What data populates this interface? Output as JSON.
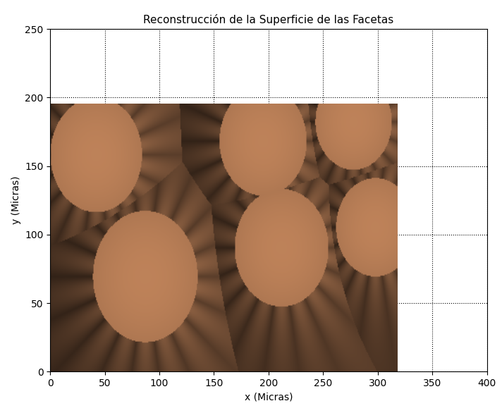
{
  "chart_data": {
    "type": "surface",
    "title": "Reconstrucción de la Superficie de las Facetas",
    "x_label": "x (Micras)",
    "y_label": "y (Micras)",
    "xlim": [
      0,
      400
    ],
    "ylim": [
      0,
      250
    ],
    "xticks": [
      0,
      50,
      100,
      150,
      200,
      250,
      300,
      350,
      400
    ],
    "yticks": [
      0,
      50,
      100,
      150,
      200,
      250
    ],
    "grid": true,
    "color": "#c8895e",
    "extent": [
      0,
      318,
      0,
      195
    ],
    "facets": [
      {
        "x": 42,
        "y": 158,
        "r": 42
      },
      {
        "x": 195,
        "y": 168,
        "r": 40
      },
      {
        "x": 278,
        "y": 182,
        "r": 35
      },
      {
        "x": 87,
        "y": 69,
        "r": 48
      },
      {
        "x": 212,
        "y": 90,
        "r": 43
      },
      {
        "x": 298,
        "y": 105,
        "r": 36
      }
    ]
  }
}
